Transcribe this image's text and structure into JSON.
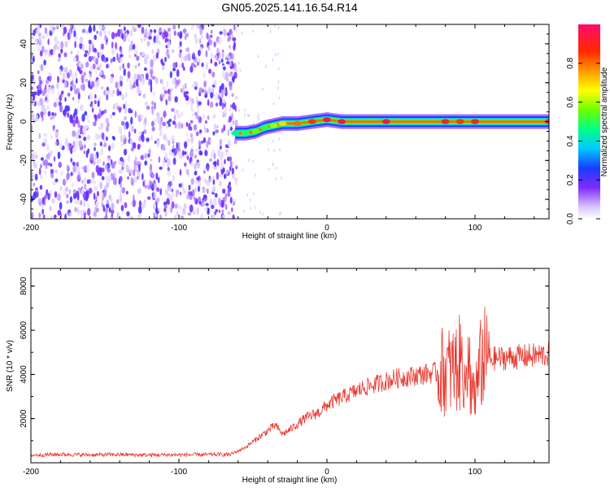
{
  "chart_data": [
    {
      "type": "heatmap",
      "title": "GN05.2025.141.16.54.R14",
      "xlabel": "Height of straight line (km)",
      "ylabel": "Frequency (Hz)",
      "xlim": [
        -200,
        150
      ],
      "ylim": [
        -50,
        50
      ],
      "x_ticks": [
        -200,
        -100,
        0,
        100
      ],
      "y_ticks": [
        -40,
        -20,
        0,
        20,
        40
      ],
      "x_tick_labels": [
        "-200",
        "-100",
        "0",
        "100"
      ],
      "y_tick_labels": [
        "-40",
        "-20",
        "0",
        "20",
        "40"
      ],
      "colorscale": "rainbow (white-purple-blue-cyan-green-yellow-orange-red-magenta)",
      "colorbar": {
        "label": "Normalized spectral amplitude",
        "range": [
          0,
          1
        ],
        "ticks": [
          0.0,
          0.2,
          0.4,
          0.6,
          0.8
        ],
        "tick_labels": [
          "0.0",
          "0.2",
          "0.4",
          "0.6",
          "0.8"
        ]
      },
      "noise_region_x": [
        -200,
        -61
      ],
      "ridge": [
        {
          "x": -62,
          "y": -6,
          "amp": 0.45
        },
        {
          "x": -55,
          "y": -6,
          "amp": 0.5
        },
        {
          "x": -48,
          "y": -5,
          "amp": 0.55
        },
        {
          "x": -42,
          "y": -3,
          "amp": 0.5
        },
        {
          "x": -36,
          "y": -2,
          "amp": 0.6
        },
        {
          "x": -30,
          "y": -1,
          "amp": 0.7
        },
        {
          "x": -20,
          "y": -1,
          "amp": 0.8
        },
        {
          "x": -10,
          "y": 0,
          "amp": 0.85
        },
        {
          "x": 0,
          "y": 1,
          "amp": 0.95
        },
        {
          "x": 10,
          "y": 0,
          "amp": 0.95
        },
        {
          "x": 40,
          "y": 0,
          "amp": 0.95
        },
        {
          "x": 80,
          "y": 0,
          "amp": 0.9
        },
        {
          "x": 90,
          "y": 0,
          "amp": 0.85
        },
        {
          "x": 100,
          "y": 0,
          "amp": 0.9
        },
        {
          "x": 150,
          "y": 0,
          "amp": 0.95
        }
      ]
    },
    {
      "type": "line",
      "title": "",
      "xlabel": "Height of straight line (km)",
      "ylabel": "SNR (10 * v/v)",
      "xlim": [
        -200,
        150
      ],
      "ylim": [
        0,
        8800
      ],
      "x_ticks": [
        -200,
        -100,
        0,
        100
      ],
      "y_ticks": [
        2000,
        4000,
        6000,
        8000
      ],
      "x_tick_labels": [
        "-200",
        "-100",
        "0",
        "100"
      ],
      "y_tick_labels": [
        "2000",
        "4000",
        "6000",
        "8000"
      ],
      "series": [
        {
          "color": "#e8382f",
          "x": [
            -200,
            -180,
            -160,
            -140,
            -120,
            -100,
            -80,
            -65,
            -55,
            -45,
            -35,
            -30,
            -25,
            -15,
            -5,
            0,
            5,
            15,
            25,
            35,
            45,
            55,
            65,
            75,
            85,
            90,
            95,
            100,
            105,
            110,
            120,
            130,
            140,
            150
          ],
          "y": [
            350,
            380,
            360,
            370,
            350,
            360,
            370,
            380,
            700,
            1200,
            1700,
            1300,
            1500,
            2000,
            2300,
            2600,
            2800,
            3100,
            3400,
            3600,
            3800,
            3900,
            4000,
            4100,
            4200,
            4500,
            4600,
            3000,
            4800,
            4700,
            4750,
            4800,
            4850,
            4900
          ]
        }
      ]
    }
  ]
}
